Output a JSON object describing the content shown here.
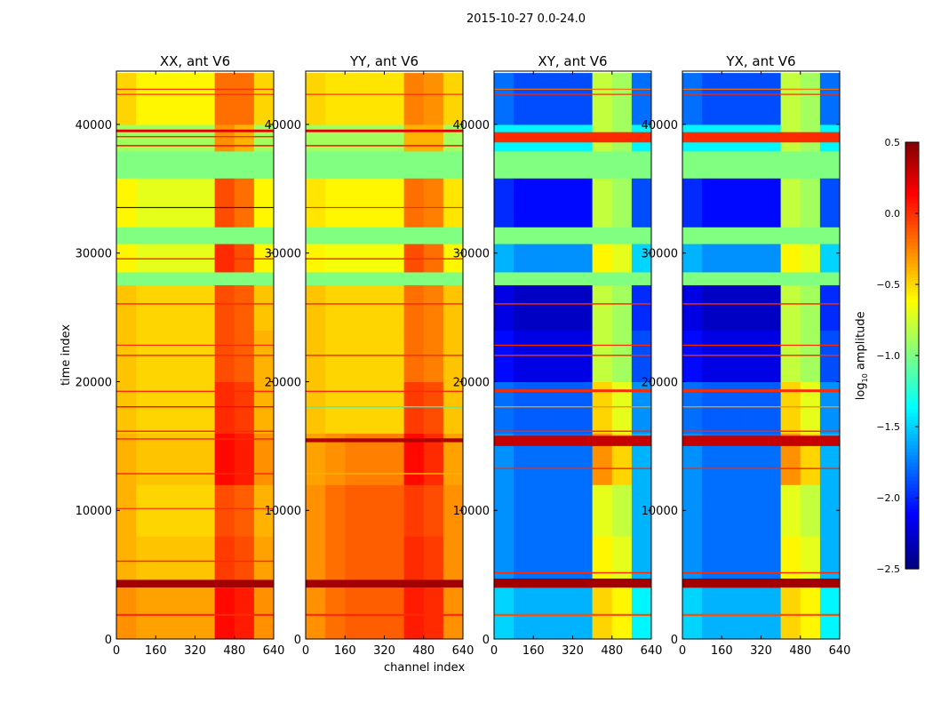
{
  "chart_data": {
    "type": "heatmap",
    "title": "2015-10-27 0.0-24.0",
    "xlabel": "channel index",
    "ylabel": "time index",
    "xlim": [
      0,
      640
    ],
    "ylim": [
      0,
      44145
    ],
    "xticks": [
      "0",
      "160",
      "320",
      "480",
      "640"
    ],
    "yticks": [
      "0",
      "10000",
      "20000",
      "30000",
      "40000"
    ],
    "time_bin": 4000,
    "channel_bin": 80,
    "colorbar": {
      "label": "log10 amplitude",
      "label_base": "log",
      "label_sub": "10",
      "label_rest": " amplitude",
      "range": [
        -2.5,
        0.5
      ],
      "ticks": [
        "0.5",
        "0.0",
        "−0.5",
        "−1.0",
        "−1.5",
        "−2.0",
        "−2.5"
      ],
      "tick_values": [
        0.5,
        0,
        -0.5,
        -1,
        -1.5,
        -2,
        -2.5
      ],
      "colormap": "jet"
    },
    "panels": [
      {
        "title": "XX, ant V6",
        "matrix": [
          [
            -0.3,
            -0.35,
            -0.35,
            -0.35,
            -0.35,
            0.1,
            0.05,
            -0.3
          ],
          [
            -0.4,
            -0.45,
            -0.45,
            -0.45,
            -0.45,
            -0.05,
            -0.1,
            -0.35
          ],
          [
            -0.4,
            -0.5,
            -0.5,
            -0.5,
            -0.5,
            -0.1,
            -0.15,
            -0.4
          ],
          [
            -0.4,
            -0.45,
            -0.45,
            -0.45,
            -0.45,
            0.1,
            0.05,
            -0.3
          ],
          [
            -0.45,
            -0.5,
            -0.5,
            -0.5,
            -0.5,
            0.0,
            -0.05,
            -0.4
          ],
          [
            -0.45,
            -0.5,
            -0.5,
            -0.5,
            -0.5,
            -0.1,
            -0.15,
            -0.4
          ],
          [
            -0.45,
            -0.5,
            -0.5,
            -0.5,
            -0.5,
            -0.1,
            -0.15,
            -0.45
          ],
          [
            -0.6,
            -0.7,
            -0.7,
            -0.7,
            -0.7,
            0.0,
            -0.1,
            -0.6
          ],
          [
            -0.6,
            -0.7,
            -0.7,
            -0.7,
            -0.7,
            -0.1,
            -0.2,
            -0.6
          ],
          [
            -0.9,
            -0.9,
            -0.9,
            -0.9,
            -0.9,
            -0.3,
            -0.4,
            -0.9
          ],
          [
            -0.5,
            -0.6,
            -0.6,
            -0.6,
            -0.6,
            -0.2,
            -0.2,
            -0.5
          ]
        ],
        "bands": [
          [
            4000,
            4600,
            0.4
          ],
          [
            1800,
            1950,
            0.0
          ],
          [
            27500,
            28500,
            -1.0
          ],
          [
            30700,
            32000,
            -1.0
          ],
          [
            35800,
            37900,
            -1.0
          ],
          [
            39400,
            39600,
            0.2
          ],
          [
            15500,
            15600,
            0.0
          ],
          [
            6000,
            6100,
            0.0
          ],
          [
            10100,
            10180,
            0.0
          ],
          [
            12800,
            12900,
            0.0
          ],
          [
            16100,
            16200,
            0.0
          ],
          [
            18000,
            18100,
            0.1
          ],
          [
            19200,
            19300,
            0.0
          ],
          [
            22000,
            22100,
            0.0
          ],
          [
            22800,
            22880,
            0.0
          ],
          [
            26000,
            26100,
            0.0
          ],
          [
            29500,
            29600,
            0.0
          ],
          [
            33500,
            33580,
            -2.2
          ],
          [
            38300,
            38400,
            0.1
          ],
          [
            39000,
            39100,
            0.0
          ],
          [
            42300,
            42380,
            0.0
          ],
          [
            42700,
            42780,
            0.0
          ]
        ]
      },
      {
        "title": "YY, ant V6",
        "matrix": [
          [
            -0.3,
            -0.2,
            -0.15,
            -0.15,
            -0.15,
            0.05,
            0.0,
            -0.3
          ],
          [
            -0.3,
            -0.2,
            -0.15,
            -0.15,
            -0.15,
            0.0,
            -0.05,
            -0.3
          ],
          [
            -0.3,
            -0.2,
            -0.15,
            -0.15,
            -0.15,
            -0.05,
            -0.1,
            -0.3
          ],
          [
            -0.35,
            -0.3,
            -0.25,
            -0.25,
            -0.25,
            0.1,
            0.0,
            -0.35
          ],
          [
            -0.45,
            -0.5,
            -0.5,
            -0.5,
            -0.5,
            -0.05,
            -0.1,
            -0.45
          ],
          [
            -0.45,
            -0.5,
            -0.5,
            -0.5,
            -0.5,
            -0.2,
            -0.25,
            -0.45
          ],
          [
            -0.45,
            -0.5,
            -0.5,
            -0.5,
            -0.5,
            -0.2,
            -0.25,
            -0.45
          ],
          [
            -0.6,
            -0.65,
            -0.65,
            -0.65,
            -0.65,
            -0.1,
            -0.2,
            -0.6
          ],
          [
            -0.55,
            -0.6,
            -0.6,
            -0.6,
            -0.6,
            -0.2,
            -0.25,
            -0.55
          ],
          [
            -0.9,
            -0.9,
            -0.9,
            -0.9,
            -0.9,
            -0.4,
            -0.4,
            -0.9
          ],
          [
            -0.5,
            -0.55,
            -0.55,
            -0.55,
            -0.55,
            -0.25,
            -0.3,
            -0.5
          ]
        ],
        "bands": [
          [
            4000,
            4600,
            0.4
          ],
          [
            1800,
            1950,
            0.0
          ],
          [
            27500,
            28500,
            -1.0
          ],
          [
            30700,
            32000,
            -1.0
          ],
          [
            35800,
            37900,
            -1.0
          ],
          [
            39400,
            39600,
            0.2
          ],
          [
            15300,
            15600,
            0.35
          ],
          [
            18000,
            18100,
            -1.3
          ],
          [
            12800,
            12900,
            -0.4
          ],
          [
            19200,
            19300,
            0.0
          ],
          [
            22000,
            22100,
            0.0
          ],
          [
            26000,
            26100,
            0.0
          ],
          [
            29500,
            29600,
            0.0
          ],
          [
            33500,
            33580,
            0.0
          ],
          [
            38300,
            38400,
            0.1
          ],
          [
            42300,
            42380,
            0.0
          ]
        ]
      },
      {
        "title": "XY, ant V6",
        "matrix": [
          [
            -1.5,
            -1.6,
            -1.6,
            -1.6,
            -1.6,
            -0.5,
            -0.6,
            -1.4
          ],
          [
            -1.7,
            -1.8,
            -1.8,
            -1.8,
            -1.8,
            -0.6,
            -0.7,
            -1.6
          ],
          [
            -1.7,
            -1.8,
            -1.8,
            -1.8,
            -1.8,
            -0.7,
            -0.8,
            -1.6
          ],
          [
            -1.7,
            -1.8,
            -1.8,
            -1.8,
            -1.8,
            -0.3,
            -0.5,
            -1.6
          ],
          [
            -1.8,
            -1.85,
            -1.85,
            -1.85,
            -1.85,
            -0.5,
            -0.7,
            -1.7
          ],
          [
            -2.1,
            -2.2,
            -2.2,
            -2.2,
            -2.2,
            -0.8,
            -0.9,
            -1.9
          ],
          [
            -2.2,
            -2.3,
            -2.3,
            -2.3,
            -2.3,
            -0.8,
            -0.9,
            -2.0
          ],
          [
            -1.6,
            -1.7,
            -1.7,
            -1.7,
            -1.7,
            -0.6,
            -0.7,
            -1.5
          ],
          [
            -2.0,
            -2.1,
            -2.1,
            -2.1,
            -2.1,
            -0.8,
            -0.9,
            -1.9
          ],
          [
            -1.4,
            -1.4,
            -1.4,
            -1.4,
            -1.4,
            -0.8,
            -0.9,
            -1.4
          ],
          [
            -1.8,
            -1.9,
            -1.9,
            -1.9,
            -1.9,
            -0.8,
            -0.9,
            -1.8
          ]
        ],
        "bands": [
          [
            4000,
            4700,
            0.4
          ],
          [
            1800,
            1950,
            -0.1
          ],
          [
            27500,
            28500,
            -1.0
          ],
          [
            30700,
            32000,
            -1.0
          ],
          [
            35800,
            37900,
            -1.0
          ],
          [
            38600,
            39400,
            0.0
          ],
          [
            15000,
            15800,
            0.3
          ],
          [
            5100,
            5200,
            0.0
          ],
          [
            13200,
            13300,
            0.0
          ],
          [
            16100,
            16200,
            0.0
          ],
          [
            18000,
            18100,
            -0.3
          ],
          [
            19200,
            19400,
            0.0
          ],
          [
            22000,
            22100,
            0.0
          ],
          [
            22800,
            22880,
            0.0
          ],
          [
            26000,
            26100,
            0.0
          ],
          [
            42300,
            42380,
            0.0
          ],
          [
            42700,
            42780,
            -0.2
          ]
        ]
      },
      {
        "title": "YX, ant V6",
        "matrix": [
          [
            -1.5,
            -1.6,
            -1.6,
            -1.6,
            -1.6,
            -0.5,
            -0.6,
            -1.4
          ],
          [
            -1.7,
            -1.8,
            -1.8,
            -1.8,
            -1.8,
            -0.6,
            -0.7,
            -1.6
          ],
          [
            -1.7,
            -1.8,
            -1.8,
            -1.8,
            -1.8,
            -0.7,
            -0.8,
            -1.6
          ],
          [
            -1.7,
            -1.8,
            -1.8,
            -1.8,
            -1.8,
            -0.3,
            -0.5,
            -1.6
          ],
          [
            -1.8,
            -1.85,
            -1.85,
            -1.85,
            -1.85,
            -0.5,
            -0.7,
            -1.7
          ],
          [
            -2.1,
            -2.2,
            -2.2,
            -2.2,
            -2.2,
            -0.8,
            -0.9,
            -1.9
          ],
          [
            -2.2,
            -2.3,
            -2.3,
            -2.3,
            -2.3,
            -0.8,
            -0.9,
            -2.0
          ],
          [
            -1.6,
            -1.7,
            -1.7,
            -1.7,
            -1.7,
            -0.6,
            -0.7,
            -1.5
          ],
          [
            -2.0,
            -2.1,
            -2.1,
            -2.1,
            -2.1,
            -0.8,
            -0.9,
            -1.9
          ],
          [
            -1.4,
            -1.4,
            -1.4,
            -1.4,
            -1.4,
            -0.8,
            -0.9,
            -1.4
          ],
          [
            -1.8,
            -1.9,
            -1.9,
            -1.9,
            -1.9,
            -0.8,
            -0.9,
            -1.8
          ]
        ],
        "bands": [
          [
            4000,
            4700,
            0.4
          ],
          [
            1800,
            1950,
            -0.1
          ],
          [
            27500,
            28500,
            -1.0
          ],
          [
            30700,
            32000,
            -1.0
          ],
          [
            35800,
            37900,
            -1.0
          ],
          [
            38600,
            39400,
            0.0
          ],
          [
            15000,
            15800,
            0.3
          ],
          [
            5100,
            5200,
            0.0
          ],
          [
            13200,
            13300,
            0.0
          ],
          [
            16100,
            16200,
            0.0
          ],
          [
            18000,
            18100,
            -0.3
          ],
          [
            19200,
            19400,
            0.0
          ],
          [
            22000,
            22100,
            0.0
          ],
          [
            22800,
            22880,
            0.0
          ],
          [
            26000,
            26100,
            0.0
          ],
          [
            42300,
            42380,
            0.0
          ],
          [
            42700,
            42780,
            -0.2
          ]
        ]
      }
    ]
  }
}
